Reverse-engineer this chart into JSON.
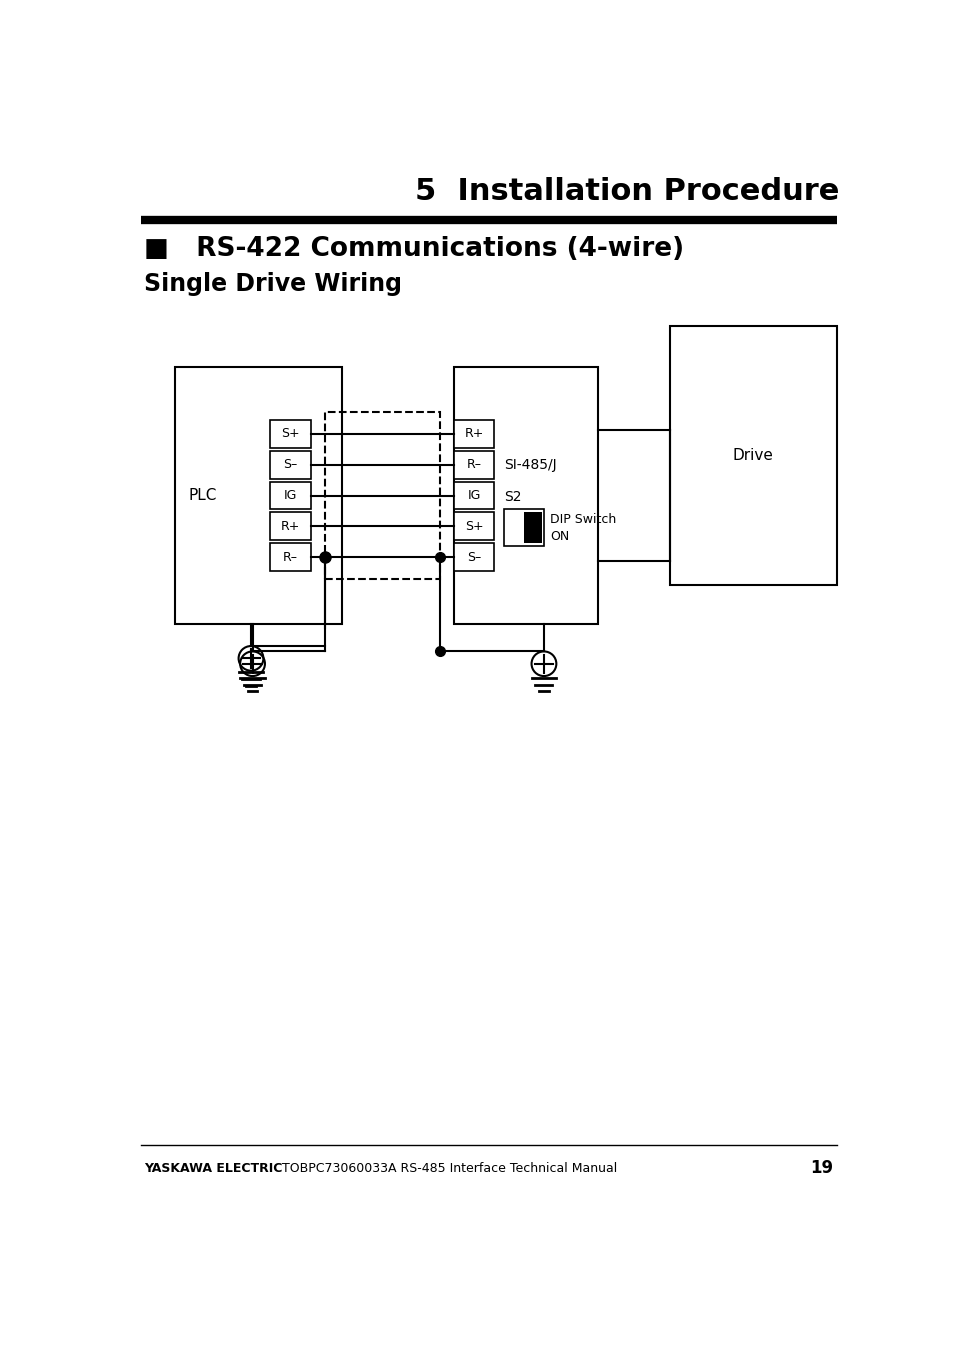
{
  "title": "5  Installation Procedure",
  "section_title": "■   RS-422 Communications (4-wire)",
  "subsection_title": "Single Drive Wiring",
  "footer_bold": "YASKAWA ELECTRIC",
  "footer_normal": " TOBPC73060033A RS-485 Interface Technical Manual",
  "footer_page": "19",
  "plc_label": "PLC",
  "plc_pins": [
    "S+",
    "S–",
    "IG",
    "R+",
    "R–"
  ],
  "si_pins": [
    "R+",
    "R–",
    "IG",
    "S+",
    "S–"
  ],
  "si_label": "SI-485/J",
  "s2_label": "S2",
  "dip_label": "DIP Switch\nON",
  "drive_label": "Drive",
  "bg_color": "#ffffff",
  "line_color": "#000000",
  "page_width": 9.54,
  "page_height": 13.54
}
